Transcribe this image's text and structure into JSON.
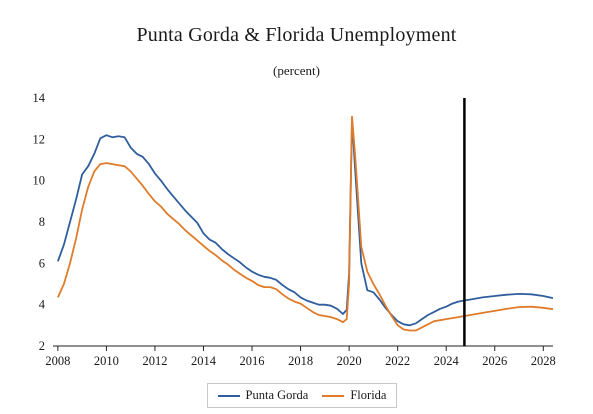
{
  "chart_data": {
    "type": "line",
    "title": "Punta Gorda & Florida Unemployment",
    "subtitle": "(percent)",
    "xlabel": "",
    "ylabel": "",
    "xlim": [
      2007.8,
      2028.4
    ],
    "ylim": [
      2,
      14
    ],
    "x_ticks": [
      2008,
      2010,
      2012,
      2014,
      2016,
      2018,
      2020,
      2022,
      2024,
      2026,
      2028
    ],
    "y_ticks": [
      2,
      4,
      6,
      8,
      10,
      12,
      14
    ],
    "grid": false,
    "legend_position": "bottom-center",
    "vertical_marker_x": 2024.75,
    "series": [
      {
        "name": "Punta Gorda",
        "color": "#2f5e9e",
        "points": [
          [
            2008.0,
            6.1
          ],
          [
            2008.25,
            6.9
          ],
          [
            2008.5,
            8.0
          ],
          [
            2008.75,
            9.1
          ],
          [
            2009.0,
            10.3
          ],
          [
            2009.25,
            10.7
          ],
          [
            2009.5,
            11.3
          ],
          [
            2009.75,
            12.05
          ],
          [
            2010.0,
            12.2
          ],
          [
            2010.25,
            12.1
          ],
          [
            2010.5,
            12.15
          ],
          [
            2010.75,
            12.1
          ],
          [
            2011.0,
            11.6
          ],
          [
            2011.25,
            11.3
          ],
          [
            2011.5,
            11.15
          ],
          [
            2011.75,
            10.8
          ],
          [
            2012.0,
            10.35
          ],
          [
            2012.25,
            10.0
          ],
          [
            2012.5,
            9.6
          ],
          [
            2012.75,
            9.25
          ],
          [
            2013.0,
            8.9
          ],
          [
            2013.25,
            8.55
          ],
          [
            2013.5,
            8.25
          ],
          [
            2013.75,
            7.95
          ],
          [
            2014.0,
            7.45
          ],
          [
            2014.25,
            7.15
          ],
          [
            2014.5,
            7.0
          ],
          [
            2014.75,
            6.7
          ],
          [
            2015.0,
            6.45
          ],
          [
            2015.25,
            6.25
          ],
          [
            2015.5,
            6.05
          ],
          [
            2015.75,
            5.8
          ],
          [
            2016.0,
            5.6
          ],
          [
            2016.25,
            5.45
          ],
          [
            2016.5,
            5.35
          ],
          [
            2016.75,
            5.3
          ],
          [
            2017.0,
            5.2
          ],
          [
            2017.25,
            4.95
          ],
          [
            2017.5,
            4.75
          ],
          [
            2017.75,
            4.6
          ],
          [
            2018.0,
            4.35
          ],
          [
            2018.25,
            4.2
          ],
          [
            2018.5,
            4.1
          ],
          [
            2018.75,
            4.0
          ],
          [
            2019.0,
            4.0
          ],
          [
            2019.25,
            3.95
          ],
          [
            2019.5,
            3.8
          ],
          [
            2019.75,
            3.55
          ],
          [
            2019.9,
            3.75
          ],
          [
            2020.0,
            5.5
          ],
          [
            2020.12,
            13.0
          ],
          [
            2020.25,
            10.5
          ],
          [
            2020.5,
            6.0
          ],
          [
            2020.75,
            4.7
          ],
          [
            2021.0,
            4.6
          ],
          [
            2021.25,
            4.25
          ],
          [
            2021.5,
            3.85
          ],
          [
            2021.75,
            3.5
          ],
          [
            2022.0,
            3.2
          ],
          [
            2022.25,
            3.05
          ],
          [
            2022.5,
            3.0
          ],
          [
            2022.75,
            3.1
          ],
          [
            2023.0,
            3.3
          ],
          [
            2023.25,
            3.5
          ],
          [
            2023.5,
            3.65
          ],
          [
            2023.75,
            3.8
          ],
          [
            2024.0,
            3.9
          ],
          [
            2024.25,
            4.05
          ],
          [
            2024.5,
            4.15
          ],
          [
            2024.75,
            4.2
          ],
          [
            2025.0,
            4.25
          ],
          [
            2025.5,
            4.35
          ],
          [
            2026.0,
            4.42
          ],
          [
            2026.5,
            4.48
          ],
          [
            2027.0,
            4.52
          ],
          [
            2027.5,
            4.5
          ],
          [
            2028.0,
            4.42
          ],
          [
            2028.4,
            4.32
          ]
        ]
      },
      {
        "name": "Florida",
        "color": "#e07b2a",
        "points": [
          [
            2008.0,
            4.35
          ],
          [
            2008.25,
            5.0
          ],
          [
            2008.5,
            6.0
          ],
          [
            2008.75,
            7.2
          ],
          [
            2009.0,
            8.6
          ],
          [
            2009.25,
            9.7
          ],
          [
            2009.5,
            10.45
          ],
          [
            2009.75,
            10.8
          ],
          [
            2010.0,
            10.85
          ],
          [
            2010.25,
            10.8
          ],
          [
            2010.5,
            10.75
          ],
          [
            2010.75,
            10.7
          ],
          [
            2011.0,
            10.45
          ],
          [
            2011.25,
            10.1
          ],
          [
            2011.5,
            9.75
          ],
          [
            2011.75,
            9.35
          ],
          [
            2012.0,
            9.0
          ],
          [
            2012.25,
            8.75
          ],
          [
            2012.5,
            8.4
          ],
          [
            2012.75,
            8.15
          ],
          [
            2013.0,
            7.9
          ],
          [
            2013.25,
            7.6
          ],
          [
            2013.5,
            7.35
          ],
          [
            2013.75,
            7.1
          ],
          [
            2014.0,
            6.85
          ],
          [
            2014.25,
            6.6
          ],
          [
            2014.5,
            6.4
          ],
          [
            2014.75,
            6.15
          ],
          [
            2015.0,
            5.95
          ],
          [
            2015.25,
            5.7
          ],
          [
            2015.5,
            5.5
          ],
          [
            2015.75,
            5.3
          ],
          [
            2016.0,
            5.15
          ],
          [
            2016.25,
            4.95
          ],
          [
            2016.5,
            4.85
          ],
          [
            2016.75,
            4.85
          ],
          [
            2017.0,
            4.75
          ],
          [
            2017.25,
            4.5
          ],
          [
            2017.5,
            4.3
          ],
          [
            2017.75,
            4.15
          ],
          [
            2018.0,
            4.05
          ],
          [
            2018.25,
            3.85
          ],
          [
            2018.5,
            3.65
          ],
          [
            2018.75,
            3.5
          ],
          [
            2019.0,
            3.45
          ],
          [
            2019.25,
            3.4
          ],
          [
            2019.5,
            3.3
          ],
          [
            2019.75,
            3.15
          ],
          [
            2019.9,
            3.3
          ],
          [
            2020.0,
            5.0
          ],
          [
            2020.12,
            13.1
          ],
          [
            2020.25,
            11.2
          ],
          [
            2020.5,
            6.8
          ],
          [
            2020.75,
            5.6
          ],
          [
            2021.0,
            5.0
          ],
          [
            2021.25,
            4.5
          ],
          [
            2021.5,
            3.95
          ],
          [
            2021.75,
            3.45
          ],
          [
            2022.0,
            3.0
          ],
          [
            2022.25,
            2.8
          ],
          [
            2022.5,
            2.75
          ],
          [
            2022.75,
            2.75
          ],
          [
            2023.0,
            2.9
          ],
          [
            2023.25,
            3.05
          ],
          [
            2023.5,
            3.2
          ],
          [
            2023.75,
            3.25
          ],
          [
            2024.0,
            3.3
          ],
          [
            2024.25,
            3.35
          ],
          [
            2024.5,
            3.4
          ],
          [
            2024.75,
            3.45
          ],
          [
            2025.0,
            3.5
          ],
          [
            2025.5,
            3.6
          ],
          [
            2026.0,
            3.7
          ],
          [
            2026.5,
            3.8
          ],
          [
            2027.0,
            3.88
          ],
          [
            2027.5,
            3.9
          ],
          [
            2028.0,
            3.85
          ],
          [
            2028.4,
            3.78
          ]
        ]
      }
    ]
  }
}
